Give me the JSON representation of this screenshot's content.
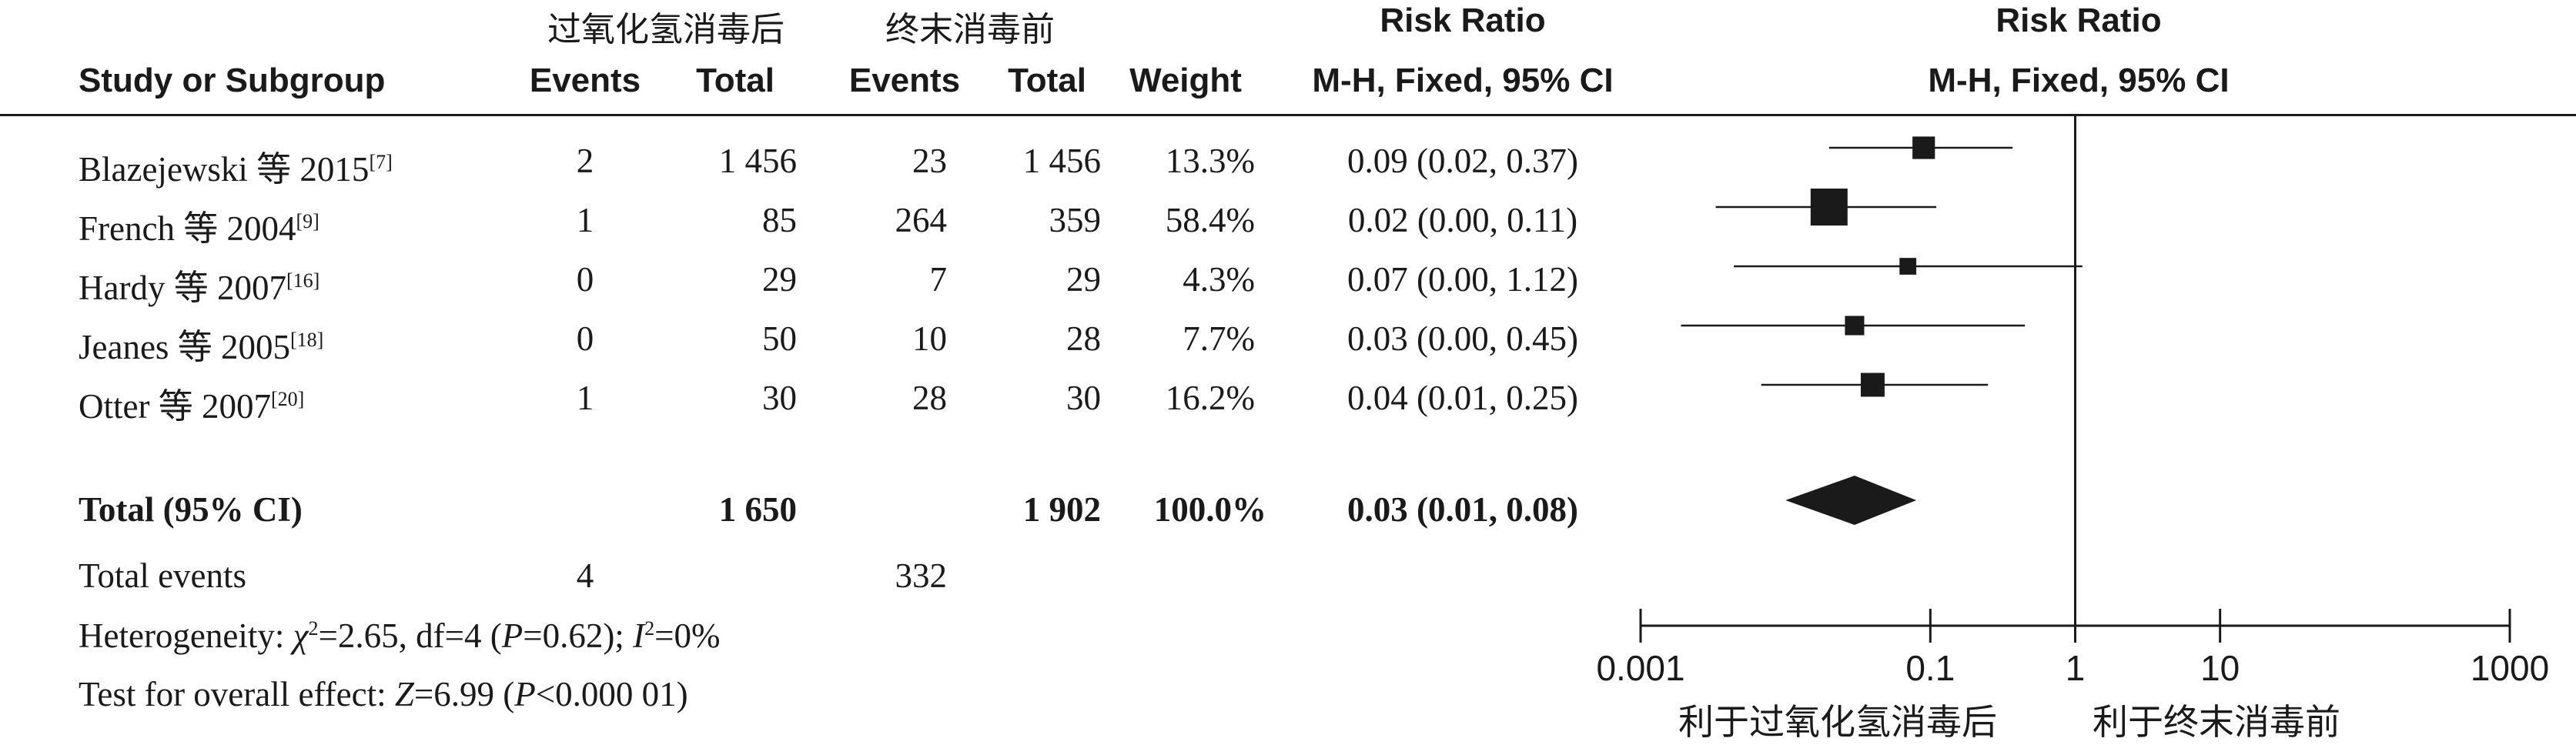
{
  "group_headers": {
    "experimental": "过氧化氢消毒后",
    "control": "终末消毒前"
  },
  "columns": {
    "study": "Study or Subgroup",
    "events1": "Events",
    "total1": "Total",
    "events2": "Events",
    "total2": "Total",
    "weight": "Weight",
    "rr_title": "Risk Ratio",
    "rr_method": "M-H, Fixed, 95% CI",
    "plot_title": "Risk Ratio",
    "plot_method": "M-H, Fixed, 95% CI"
  },
  "studies": [
    {
      "name": "Blazejewski 等 2015",
      "ref": "[7]",
      "events1": "2",
      "total1": "1 456",
      "events2": "23",
      "total2": "1 456",
      "weight": "13.3%",
      "ci_text": "0.09 (0.02, 0.37)"
    },
    {
      "name": "French 等 2004",
      "ref": "[9]",
      "events1": "1",
      "total1": "85",
      "events2": "264",
      "total2": "359",
      "weight": "58.4%",
      "ci_text": "0.02 (0.00, 0.11)"
    },
    {
      "name": "Hardy 等 2007",
      "ref": "[16]",
      "events1": "0",
      "total1": "29",
      "events2": "7",
      "total2": "29",
      "weight": "4.3%",
      "ci_text": "0.07 (0.00, 1.12)"
    },
    {
      "name": "Jeanes 等 2005",
      "ref": "[18]",
      "events1": "0",
      "total1": "50",
      "events2": "10",
      "total2": "28",
      "weight": "7.7%",
      "ci_text": "0.03 (0.00, 0.45)"
    },
    {
      "name": "Otter 等 2007",
      "ref": "[20]",
      "events1": "1",
      "total1": "30",
      "events2": "28",
      "total2": "30",
      "weight": "16.2%",
      "ci_text": "0.04 (0.01, 0.25)"
    }
  ],
  "total": {
    "label": "Total (95% CI)",
    "total1": "1 650",
    "total2": "1 902",
    "weight": "100.0%",
    "ci_text": "0.03 (0.01, 0.08)"
  },
  "total_events": {
    "label": "Total events",
    "events1": "4",
    "events2": "332"
  },
  "heterogeneity": {
    "label": "Heterogeneity: ",
    "chi": "χ",
    "chi_sup": "2",
    "chi_rest": "=2.65, df=4 (",
    "p": "P",
    "p_rest": "=0.62); ",
    "i": "I",
    "i_sup": "2",
    "i_rest": "=0%"
  },
  "overall_effect": {
    "label": "Test for overall effect: ",
    "z": "Z",
    "z_rest": "=6.99 (",
    "p": "P",
    "p_rest": "<0.000 01)"
  },
  "favours": {
    "left": "利于过氧化氢消毒后",
    "right": "利于终末消毒前"
  },
  "chart_data": {
    "type": "forest",
    "x_scale": "log",
    "xlim": [
      0.001,
      1000
    ],
    "x_ticks": [
      0.001,
      0.1,
      1,
      10,
      1000
    ],
    "x_tick_labels": [
      "0.001",
      "0.1",
      "1",
      "10",
      "1000"
    ],
    "reference_line": 1,
    "studies": [
      {
        "name": "Blazejewski 等 2015",
        "rr": 0.09,
        "lo": 0.02,
        "hi": 0.37,
        "weight": 13.3
      },
      {
        "name": "French 等 2004",
        "rr": 0.02,
        "lo": 0.0033,
        "hi": 0.11,
        "weight": 58.4
      },
      {
        "name": "Hardy 等 2007",
        "rr": 0.07,
        "lo": 0.0044,
        "hi": 1.12,
        "weight": 4.3
      },
      {
        "name": "Jeanes 等 2005",
        "rr": 0.03,
        "lo": 0.0019,
        "hi": 0.45,
        "weight": 7.7
      },
      {
        "name": "Otter 等 2007",
        "rr": 0.04,
        "lo": 0.0068,
        "hi": 0.25,
        "weight": 16.2
      }
    ],
    "pooled": {
      "rr": 0.03,
      "lo": 0.01,
      "hi": 0.08
    }
  }
}
